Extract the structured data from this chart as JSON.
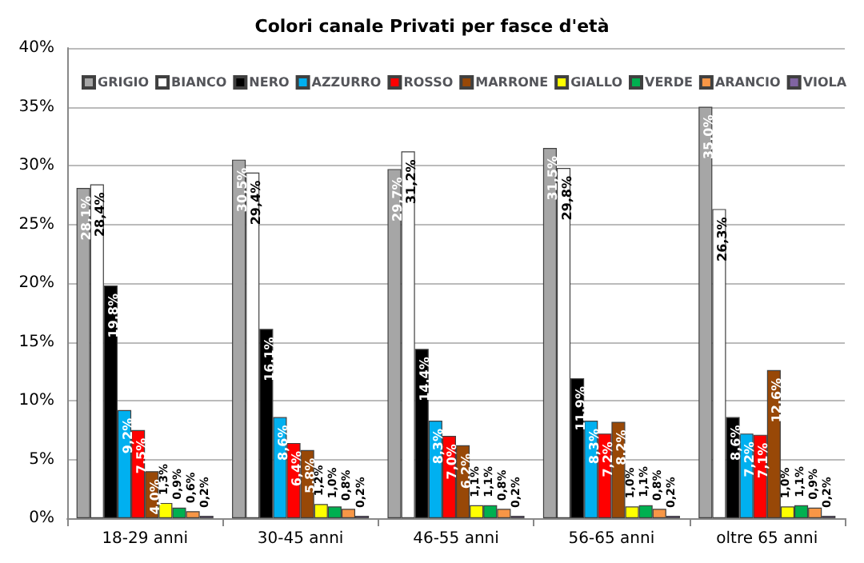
{
  "chart_data": {
    "type": "bar",
    "title": "Colori canale Privati per fasce d'età",
    "categories": [
      "18-29 anni",
      "30-45 anni",
      "46-55 anni",
      "56-65 anni",
      "oltre 65 anni"
    ],
    "series": [
      {
        "name": "GRIGIO",
        "color": "#a6a6a6",
        "values": [
          28.1,
          30.5,
          29.7,
          31.5,
          35.0
        ],
        "value_labels": [
          "28,1%",
          "30,5%",
          "29,7%",
          "31,5%",
          "35,0%"
        ]
      },
      {
        "name": "BIANCO",
        "color": "#ffffff",
        "values": [
          28.4,
          29.4,
          31.2,
          29.8,
          26.3
        ],
        "value_labels": [
          "28,4%",
          "29,4%",
          "31,2%",
          "29,8%",
          "26,3%"
        ]
      },
      {
        "name": "NERO",
        "color": "#000000",
        "values": [
          19.8,
          16.1,
          14.4,
          11.9,
          8.6
        ],
        "value_labels": [
          "19,8%",
          "16,1%",
          "14,4%",
          "11,9%",
          "8,6%"
        ]
      },
      {
        "name": "AZZURRO",
        "color": "#00b0f0",
        "values": [
          9.2,
          8.6,
          8.3,
          8.3,
          7.2
        ],
        "value_labels": [
          "9,2%",
          "8,6%",
          "8,3%",
          "8,3%",
          "7,2%"
        ]
      },
      {
        "name": "ROSSO",
        "color": "#ff0000",
        "values": [
          7.5,
          6.4,
          7.0,
          7.2,
          7.1
        ],
        "value_labels": [
          "7,5%",
          "6,4%",
          "7,0%",
          "7,2%",
          "7,1%"
        ]
      },
      {
        "name": "MARRONE",
        "color": "#984807",
        "values": [
          4.0,
          5.8,
          6.2,
          8.2,
          12.6
        ],
        "value_labels": [
          "4,0%",
          "5,8%",
          "6,2%",
          "8,2%",
          "12,6%"
        ]
      },
      {
        "name": "GIALLO",
        "color": "#ffff00",
        "values": [
          1.3,
          1.2,
          1.1,
          1.0,
          1.0
        ],
        "value_labels": [
          "1,3%",
          "1,2%",
          "1,1%",
          "1,0%",
          "1,0%"
        ]
      },
      {
        "name": "VERDE",
        "color": "#00b050",
        "values": [
          0.9,
          1.0,
          1.1,
          1.1,
          1.1
        ],
        "value_labels": [
          "0,9%",
          "1,0%",
          "1,1%",
          "1,1%",
          "1,1%"
        ]
      },
      {
        "name": "ARANCIO",
        "color": "#f79646",
        "values": [
          0.6,
          0.8,
          0.8,
          0.8,
          0.9
        ],
        "value_labels": [
          "0,6%",
          "0,8%",
          "0,8%",
          "0,8%",
          "0,9%"
        ]
      },
      {
        "name": "VIOLA",
        "color": "#8064a2",
        "values": [
          0.2,
          0.2,
          0.2,
          0.2,
          0.2
        ],
        "value_labels": [
          "0,2%",
          "0,2%",
          "0,2%",
          "0,2%",
          "0,2%"
        ]
      }
    ],
    "ylim": [
      0,
      40
    ],
    "yticks": [
      {
        "value": 0,
        "label": "0%"
      },
      {
        "value": 5,
        "label": "5%"
      },
      {
        "value": 10,
        "label": "10%"
      },
      {
        "value": 15,
        "label": "15%"
      },
      {
        "value": 20,
        "label": "20%"
      },
      {
        "value": 25,
        "label": "25%"
      },
      {
        "value": 30,
        "label": "30%"
      },
      {
        "value": 35,
        "label": "35%"
      },
      {
        "value": 40,
        "label": "40%"
      }
    ],
    "grid": "y",
    "legend": "top"
  }
}
